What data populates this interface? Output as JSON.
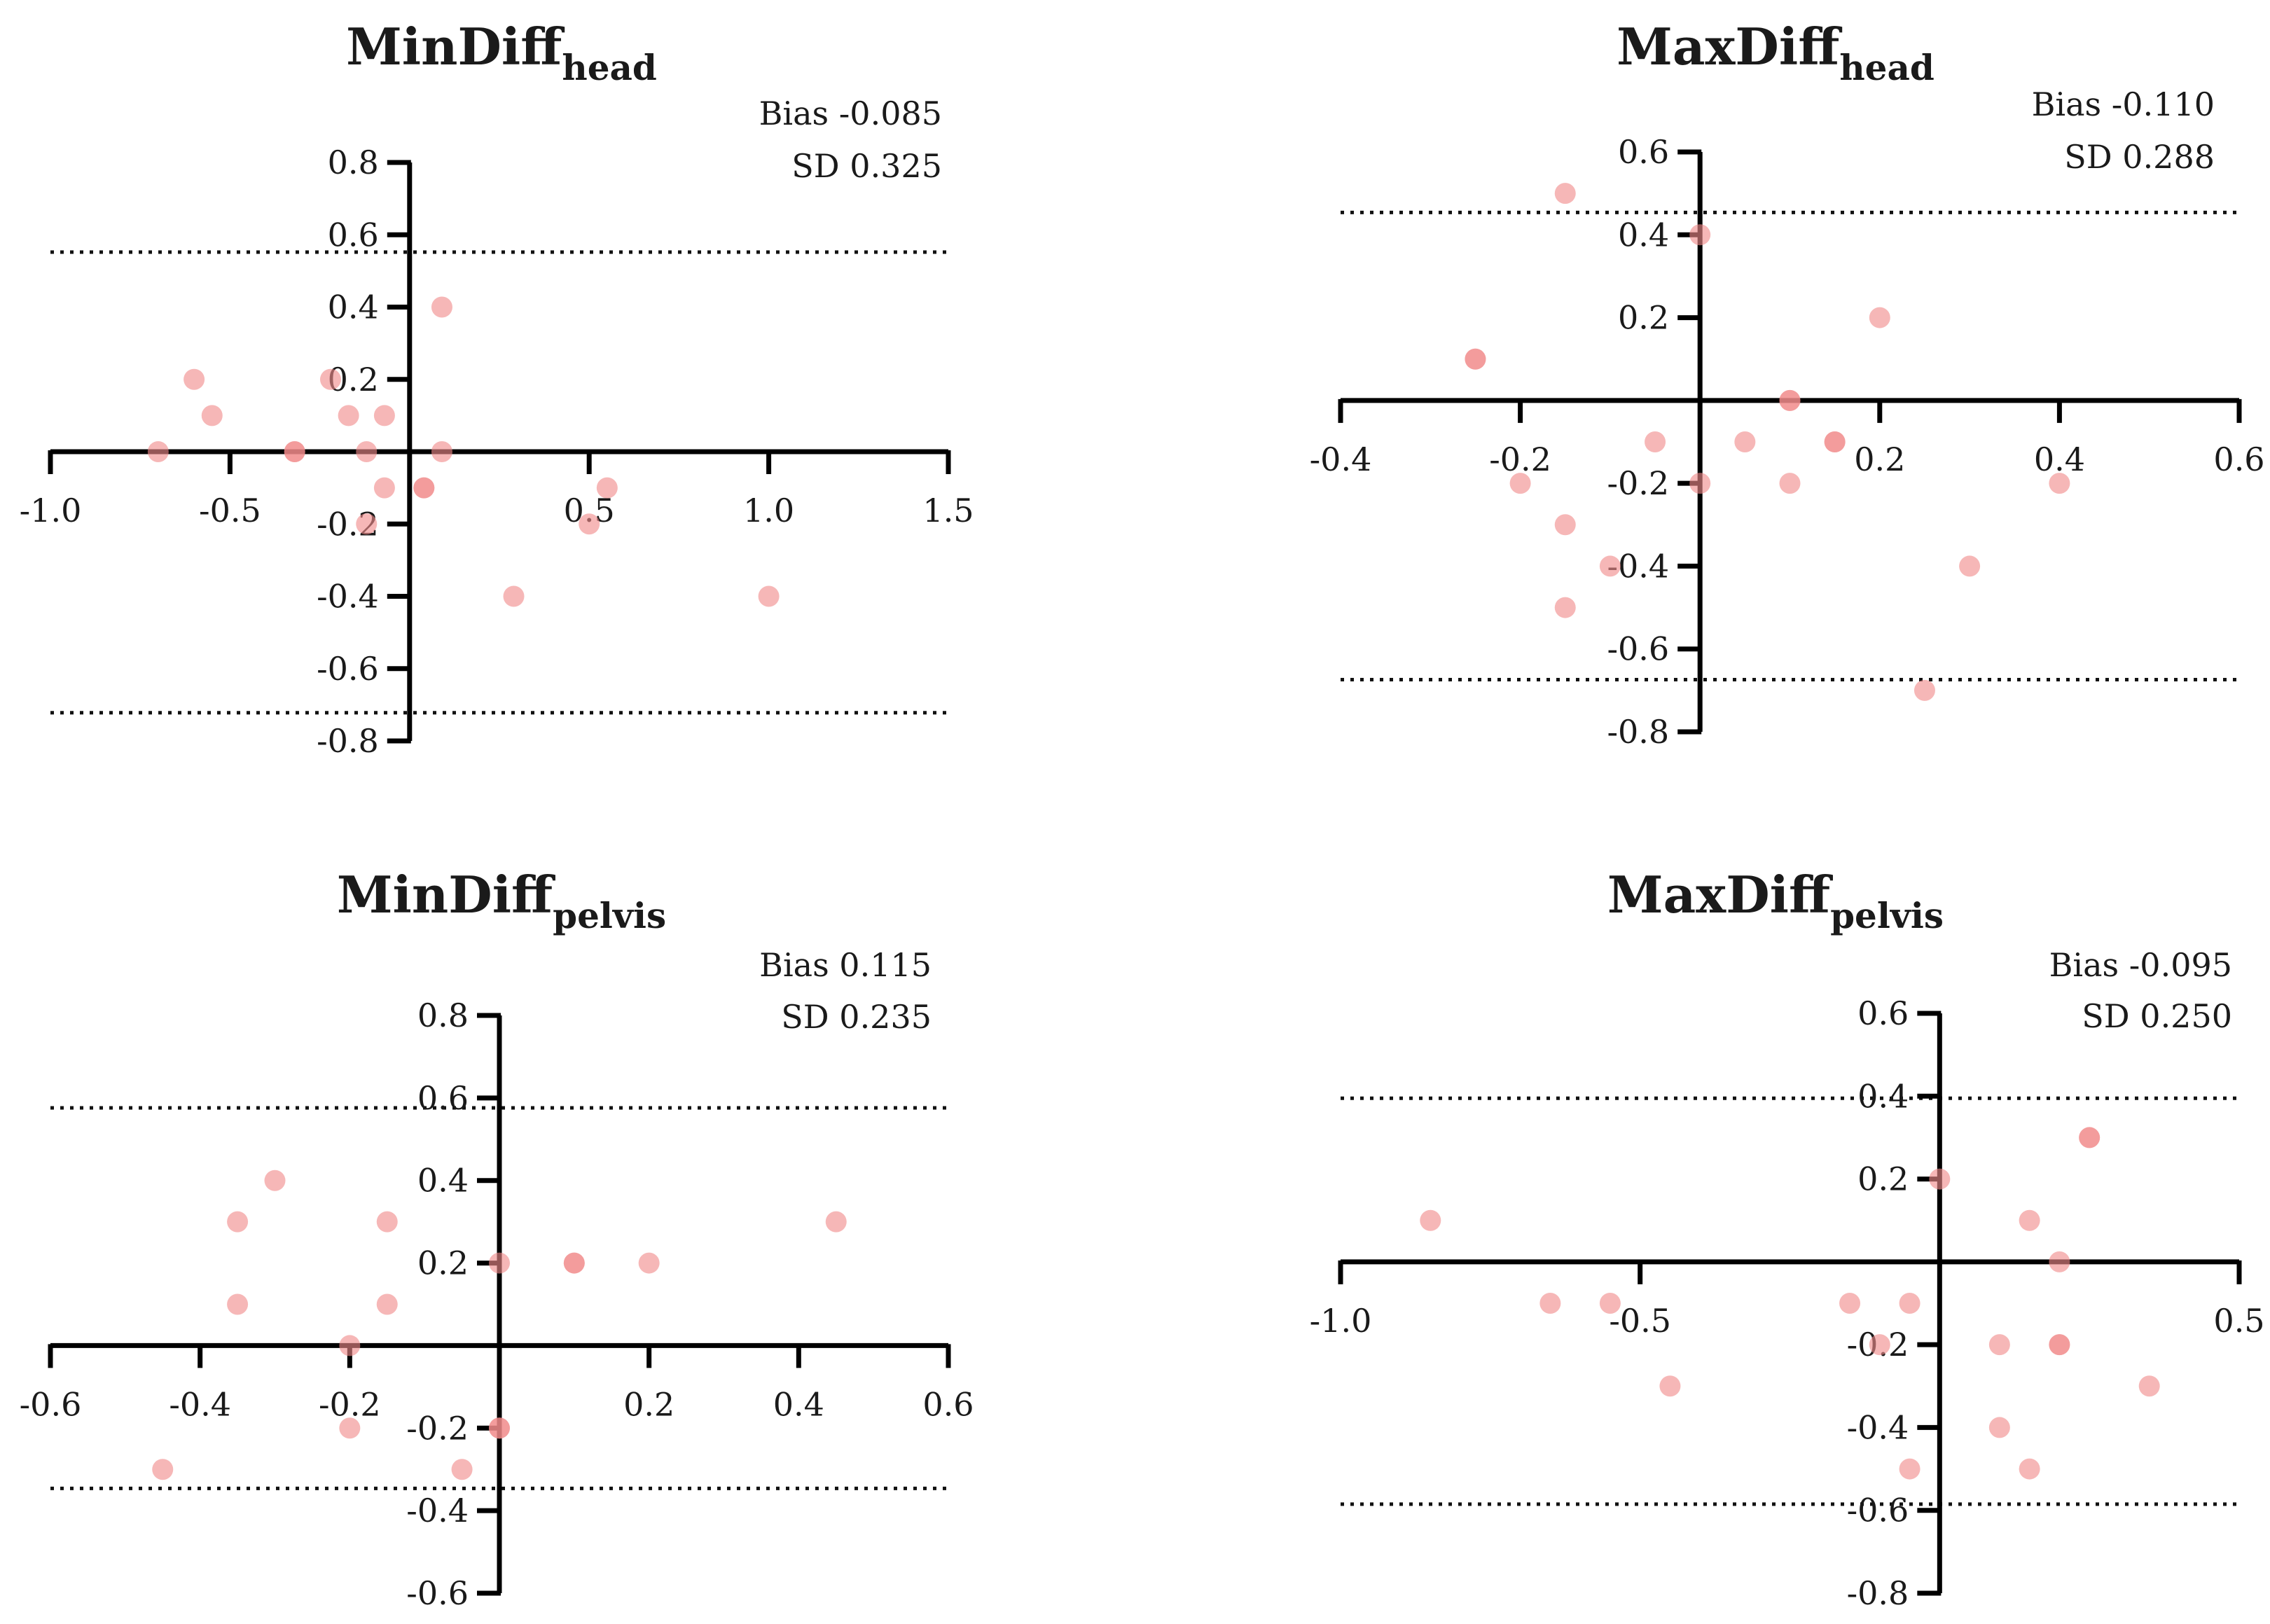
{
  "colors": {
    "point": "#f08a8a",
    "axis": "#000000",
    "text": "#1a1a1a"
  },
  "chart_data": [
    {
      "type": "scatter",
      "title": "MinDiff",
      "title_subscript": "head",
      "bias_label": "Bias -0.085",
      "sd_label": "SD 0.325",
      "xlim": [
        -1.0,
        1.5
      ],
      "ylim": [
        -0.8,
        0.8
      ],
      "x_ticks": [
        -1.0,
        -0.5,
        0.5,
        1.0,
        1.5
      ],
      "x_tick_labels": [
        "-1.0",
        "-0.5",
        "0.5",
        "1.0",
        "1.5"
      ],
      "y_ticks": [
        0.8,
        0.6,
        0.4,
        0.2,
        -0.2,
        -0.4,
        -0.6,
        -0.8
      ],
      "y_tick_labels": [
        "0.8",
        "0.6",
        "0.4",
        "0.2",
        "-0.2",
        "-0.4",
        "-0.6",
        "-0.8"
      ],
      "limits_of_agreement": [
        0.552,
        -0.722
      ],
      "points": [
        {
          "x": -0.6,
          "y": 0.2
        },
        {
          "x": -0.55,
          "y": 0.1
        },
        {
          "x": -0.7,
          "y": 0.0
        },
        {
          "x": -0.32,
          "y": 0.0
        },
        {
          "x": -0.32,
          "y": 0.0
        },
        {
          "x": -0.22,
          "y": 0.2
        },
        {
          "x": -0.17,
          "y": 0.1
        },
        {
          "x": -0.07,
          "y": 0.1
        },
        {
          "x": -0.12,
          "y": 0.0
        },
        {
          "x": -0.07,
          "y": -0.1
        },
        {
          "x": -0.12,
          "y": -0.2
        },
        {
          "x": 0.04,
          "y": -0.1
        },
        {
          "x": 0.04,
          "y": -0.1
        },
        {
          "x": 0.09,
          "y": 0.4
        },
        {
          "x": 0.09,
          "y": 0.0
        },
        {
          "x": 0.55,
          "y": -0.1
        },
        {
          "x": 0.5,
          "y": -0.2
        },
        {
          "x": 0.29,
          "y": -0.4
        },
        {
          "x": 1.0,
          "y": -0.4
        }
      ]
    },
    {
      "type": "scatter",
      "title": "MaxDiff",
      "title_subscript": "head",
      "bias_label": "Bias -0.110",
      "sd_label": "SD 0.288",
      "xlim": [
        -0.4,
        0.6
      ],
      "ylim": [
        -0.8,
        0.6
      ],
      "x_ticks": [
        -0.4,
        -0.2,
        0.2,
        0.4,
        0.6
      ],
      "x_tick_labels": [
        "-0.4",
        "-0.2",
        "0.2",
        "0.4",
        "0.6"
      ],
      "y_ticks": [
        0.6,
        0.4,
        0.2,
        -0.2,
        -0.4,
        -0.6,
        -0.8
      ],
      "y_tick_labels": [
        "0.6",
        "0.4",
        "0.2",
        "-0.2",
        "-0.4",
        "-0.6",
        "-0.8"
      ],
      "limits_of_agreement": [
        0.454,
        -0.674
      ],
      "points": [
        {
          "x": -0.15,
          "y": 0.5
        },
        {
          "x": 0.0,
          "y": 0.4
        },
        {
          "x": 0.2,
          "y": 0.2
        },
        {
          "x": -0.25,
          "y": 0.1
        },
        {
          "x": -0.25,
          "y": 0.1
        },
        {
          "x": 0.1,
          "y": 0.0
        },
        {
          "x": 0.1,
          "y": 0.0
        },
        {
          "x": -0.05,
          "y": -0.1
        },
        {
          "x": 0.05,
          "y": -0.1
        },
        {
          "x": 0.15,
          "y": -0.1
        },
        {
          "x": 0.15,
          "y": -0.1
        },
        {
          "x": -0.2,
          "y": -0.2
        },
        {
          "x": 0.0,
          "y": -0.2
        },
        {
          "x": 0.1,
          "y": -0.2
        },
        {
          "x": 0.4,
          "y": -0.2
        },
        {
          "x": -0.15,
          "y": -0.3
        },
        {
          "x": -0.1,
          "y": -0.4
        },
        {
          "x": 0.3,
          "y": -0.4
        },
        {
          "x": -0.15,
          "y": -0.5
        },
        {
          "x": 0.25,
          "y": -0.7
        }
      ]
    },
    {
      "type": "scatter",
      "title": "MinDiff",
      "title_subscript": "pelvis",
      "bias_label": "Bias 0.115",
      "sd_label": "SD 0.235",
      "xlim": [
        -0.6,
        0.6
      ],
      "ylim": [
        -0.6,
        0.8
      ],
      "x_ticks": [
        -0.6,
        -0.4,
        -0.2,
        0.2,
        0.4,
        0.6
      ],
      "x_tick_labels": [
        "-0.6",
        "-0.4",
        "-0.2",
        "0.2",
        "0.4",
        "0.6"
      ],
      "y_ticks": [
        0.8,
        0.6,
        0.4,
        0.2,
        -0.2,
        -0.4,
        -0.6
      ],
      "y_tick_labels": [
        "0.8",
        "0.6",
        "0.4",
        "0.2",
        "-0.2",
        "-0.4",
        "-0.6"
      ],
      "limits_of_agreement": [
        0.576,
        -0.346
      ],
      "points": [
        {
          "x": -0.3,
          "y": 0.4
        },
        {
          "x": -0.35,
          "y": 0.3
        },
        {
          "x": -0.15,
          "y": 0.3
        },
        {
          "x": -0.35,
          "y": 0.1
        },
        {
          "x": -0.15,
          "y": 0.1
        },
        {
          "x": -0.2,
          "y": 0.0
        },
        {
          "x": 0.0,
          "y": 0.2
        },
        {
          "x": 0.1,
          "y": 0.2
        },
        {
          "x": 0.1,
          "y": 0.2
        },
        {
          "x": 0.2,
          "y": 0.2
        },
        {
          "x": 0.45,
          "y": 0.3
        },
        {
          "x": -0.2,
          "y": -0.2
        },
        {
          "x": 0.0,
          "y": -0.2
        },
        {
          "x": 0.0,
          "y": -0.2
        },
        {
          "x": -0.45,
          "y": -0.3
        },
        {
          "x": -0.05,
          "y": -0.3
        }
      ]
    },
    {
      "type": "scatter",
      "title": "MaxDiff",
      "title_subscript": "pelvis",
      "bias_label": "Bias -0.095",
      "sd_label": "SD 0.250",
      "xlim": [
        -1.0,
        0.5
      ],
      "ylim": [
        -0.8,
        0.6
      ],
      "x_ticks": [
        -1.0,
        -0.5,
        0.5
      ],
      "x_tick_labels": [
        "-1.0",
        "-0.5",
        "0.5"
      ],
      "y_ticks": [
        0.6,
        0.4,
        0.2,
        -0.2,
        -0.4,
        -0.6,
        -0.8
      ],
      "y_tick_labels": [
        "0.6",
        "0.4",
        "0.2",
        "-0.2",
        "-0.4",
        "-0.6",
        "-0.8"
      ],
      "limits_of_agreement": [
        0.395,
        -0.585
      ],
      "points": [
        {
          "x": -0.85,
          "y": 0.1
        },
        {
          "x": -0.65,
          "y": -0.1
        },
        {
          "x": -0.55,
          "y": -0.1
        },
        {
          "x": -0.45,
          "y": -0.3
        },
        {
          "x": -0.15,
          "y": -0.1
        },
        {
          "x": -0.05,
          "y": -0.1
        },
        {
          "x": -0.1,
          "y": -0.2
        },
        {
          "x": -0.05,
          "y": -0.5
        },
        {
          "x": 0.0,
          "y": 0.2
        },
        {
          "x": 0.25,
          "y": 0.3
        },
        {
          "x": 0.25,
          "y": 0.3
        },
        {
          "x": 0.15,
          "y": 0.1
        },
        {
          "x": 0.2,
          "y": 0.0
        },
        {
          "x": 0.1,
          "y": -0.2
        },
        {
          "x": 0.2,
          "y": -0.2
        },
        {
          "x": 0.2,
          "y": -0.2
        },
        {
          "x": 0.1,
          "y": -0.4
        },
        {
          "x": 0.15,
          "y": -0.5
        },
        {
          "x": 0.35,
          "y": -0.3
        }
      ]
    }
  ]
}
